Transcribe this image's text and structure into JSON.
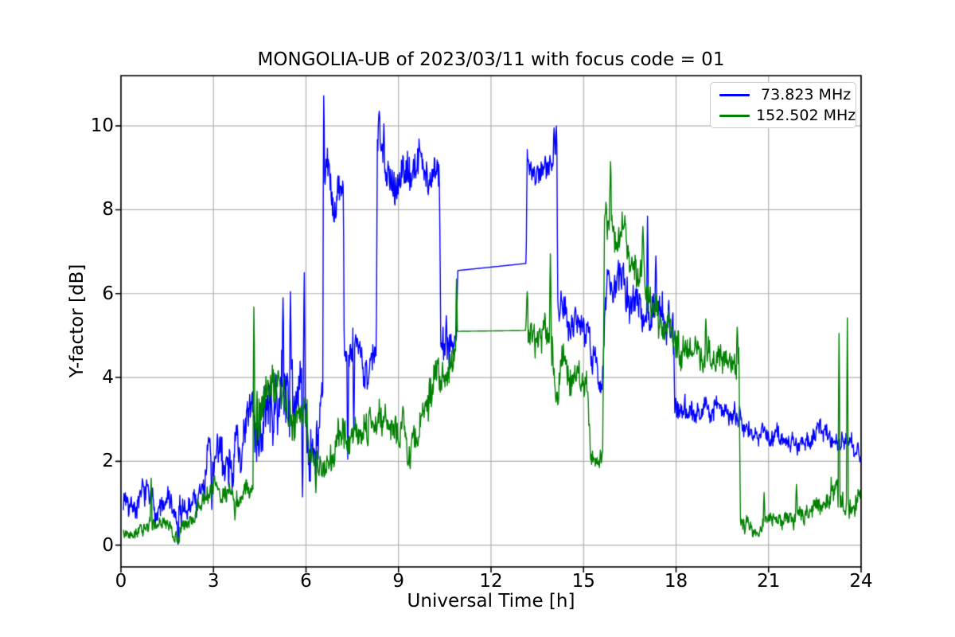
{
  "chart_data": {
    "type": "line",
    "title": "MONGOLIA-UB of 2023/03/11 with focus code = 01",
    "xlabel": "Universal Time [h]",
    "ylabel": "Y-factor [dB]",
    "xlim": [
      0,
      24
    ],
    "ylim": [
      -0.52,
      11.2
    ],
    "x_ticks": [
      0,
      3,
      6,
      9,
      12,
      15,
      18,
      21,
      24
    ],
    "y_ticks": [
      0,
      2,
      4,
      6,
      8,
      10
    ],
    "grid": true,
    "grid_color": "#b0b0b0",
    "axis_color": "#000000",
    "background": "#ffffff",
    "legend_position": "upper right",
    "keyframe_fields": [
      "time_h",
      "mean_dB",
      "noise_halfwidth_dB"
    ],
    "spike_fields": [
      "time_h",
      "peak_dB"
    ],
    "series": [
      {
        "name": "73.823 MHz",
        "color": "#0000ff",
        "linewidth": 1.4,
        "seed": 7,
        "keyframes": [
          [
            0.08,
            1.15,
            0.35
          ],
          [
            0.9,
            1.05,
            0.38
          ],
          [
            1.3,
            0.85,
            0.4
          ],
          [
            1.55,
            1.0,
            0.4
          ],
          [
            1.78,
            0.5,
            0.45
          ],
          [
            1.95,
            0.6,
            0.45
          ],
          [
            2.2,
            1.0,
            0.4
          ],
          [
            2.6,
            1.15,
            0.45
          ],
          [
            2.85,
            2.1,
            0.9
          ],
          [
            3.15,
            1.9,
            0.7
          ],
          [
            3.55,
            2.3,
            0.85
          ],
          [
            4.0,
            2.25,
            0.75
          ],
          [
            4.45,
            3.2,
            1.0
          ],
          [
            4.8,
            3.0,
            0.9
          ],
          [
            5.3,
            3.6,
            1.1
          ],
          [
            5.8,
            3.8,
            1.2
          ],
          [
            6.1,
            2.7,
            1.0
          ],
          [
            6.45,
            3.1,
            0.9
          ],
          [
            6.555,
            3.4,
            0.8
          ],
          [
            6.585,
            8.6,
            0.7
          ],
          [
            6.75,
            8.5,
            0.75
          ],
          [
            6.95,
            7.8,
            0.6
          ],
          [
            7.1,
            8.4,
            0.55
          ],
          [
            7.21,
            8.45,
            0.5
          ],
          [
            7.24,
            4.5,
            0.55
          ],
          [
            7.8,
            4.45,
            0.55
          ],
          [
            8.28,
            4.35,
            0.5
          ],
          [
            8.315,
            9.3,
            0.7
          ],
          [
            8.6,
            9.2,
            0.6
          ],
          [
            9.0,
            8.85,
            0.65
          ],
          [
            9.5,
            9.1,
            0.6
          ],
          [
            9.9,
            9.0,
            0.6
          ],
          [
            10.33,
            8.9,
            0.55
          ],
          [
            10.37,
            5.0,
            0.6
          ],
          [
            10.6,
            5.0,
            0.7
          ],
          [
            10.88,
            5.3,
            0.6
          ],
          [
            10.92,
            6.55,
            0
          ],
          [
            13.14,
            6.72,
            0
          ],
          [
            13.17,
            9.15,
            0.4
          ],
          [
            13.5,
            9.0,
            0.42
          ],
          [
            13.9,
            9.3,
            0.4
          ],
          [
            14.13,
            9.55,
            0.35
          ],
          [
            14.17,
            5.9,
            0.4
          ],
          [
            14.5,
            5.5,
            0.5
          ],
          [
            15.0,
            5.3,
            0.5
          ],
          [
            15.25,
            4.4,
            0.55
          ],
          [
            15.5,
            3.9,
            0.5
          ],
          [
            15.63,
            4.3,
            0.5
          ],
          [
            15.7,
            6.35,
            0.6
          ],
          [
            15.9,
            6.25,
            0.55
          ],
          [
            16.3,
            6.0,
            0.55
          ],
          [
            17.0,
            5.7,
            0.55
          ],
          [
            17.5,
            5.7,
            0.6
          ],
          [
            17.9,
            5.4,
            0.55
          ],
          [
            17.97,
            3.35,
            0.4
          ],
          [
            18.6,
            3.3,
            0.4
          ],
          [
            19.3,
            3.35,
            0.35
          ],
          [
            20.08,
            3.05,
            0.35
          ],
          [
            20.14,
            2.6,
            0.3
          ],
          [
            21.0,
            2.6,
            0.28
          ],
          [
            22.0,
            2.5,
            0.28
          ],
          [
            22.8,
            2.7,
            0.26
          ],
          [
            23.4,
            2.6,
            0.3
          ],
          [
            23.75,
            2.3,
            0.3
          ],
          [
            24.0,
            2.15,
            0.3
          ]
        ],
        "spikes": [
          [
            1.85,
            0.02
          ],
          [
            2.95,
            0.85
          ],
          [
            5.25,
            5.9
          ],
          [
            5.5,
            6.05
          ],
          [
            5.88,
            1.15
          ],
          [
            5.95,
            6.5
          ],
          [
            6.57,
            10.72
          ],
          [
            7.35,
            2.05
          ],
          [
            7.55,
            2.7
          ],
          [
            8.38,
            10.35
          ],
          [
            8.52,
            10.05
          ],
          [
            14.05,
            9.95
          ],
          [
            14.12,
            10.0
          ],
          [
            17.07,
            7.85
          ],
          [
            17.35,
            6.9
          ]
        ]
      },
      {
        "name": "152.502 MHz",
        "color": "#008000",
        "linewidth": 1.4,
        "seed": 13,
        "keyframes": [
          [
            0.08,
            0.38,
            0.16
          ],
          [
            0.9,
            0.42,
            0.2
          ],
          [
            1.5,
            0.42,
            0.18
          ],
          [
            1.82,
            0.2,
            0.16
          ],
          [
            2.05,
            0.4,
            0.2
          ],
          [
            2.5,
            0.85,
            0.25
          ],
          [
            3.0,
            1.35,
            0.3
          ],
          [
            3.4,
            1.3,
            0.3
          ],
          [
            3.75,
            1.05,
            0.3
          ],
          [
            4.1,
            1.2,
            0.3
          ],
          [
            4.29,
            1.35,
            0.3
          ],
          [
            4.33,
            3.5,
            0.8
          ],
          [
            4.7,
            3.4,
            0.7
          ],
          [
            5.1,
            3.3,
            0.7
          ],
          [
            5.6,
            3.1,
            0.65
          ],
          [
            6.02,
            2.9,
            0.6
          ],
          [
            6.1,
            1.85,
            0.45
          ],
          [
            6.5,
            1.8,
            0.4
          ],
          [
            7.0,
            2.3,
            0.5
          ],
          [
            7.5,
            2.9,
            0.5
          ],
          [
            8.2,
            3.0,
            0.5
          ],
          [
            8.8,
            3.1,
            0.45
          ],
          [
            9.22,
            2.75,
            0.5
          ],
          [
            9.38,
            2.4,
            0.45
          ],
          [
            9.8,
            3.1,
            0.5
          ],
          [
            10.3,
            4.0,
            0.5
          ],
          [
            10.7,
            4.3,
            0.45
          ],
          [
            10.87,
            4.6,
            0.4
          ],
          [
            10.9,
            5.1,
            0
          ],
          [
            13.12,
            5.12,
            0
          ],
          [
            13.16,
            5.15,
            0.55
          ],
          [
            13.5,
            4.6,
            0.5
          ],
          [
            13.9,
            4.8,
            0.7
          ],
          [
            14.1,
            4.2,
            0.6
          ],
          [
            14.6,
            3.9,
            0.55
          ],
          [
            15.1,
            3.45,
            0.5
          ],
          [
            15.24,
            2.0,
            0.35
          ],
          [
            15.45,
            1.85,
            0.3
          ],
          [
            15.62,
            2.1,
            0.35
          ],
          [
            15.68,
            7.9,
            0.7
          ],
          [
            15.9,
            8.2,
            0.6
          ],
          [
            16.05,
            7.5,
            0.6
          ],
          [
            16.5,
            6.9,
            0.55
          ],
          [
            17.0,
            6.3,
            0.55
          ],
          [
            17.5,
            5.5,
            0.5
          ],
          [
            18.0,
            4.8,
            0.45
          ],
          [
            18.7,
            4.55,
            0.45
          ],
          [
            19.5,
            4.5,
            0.4
          ],
          [
            20.04,
            4.4,
            0.4
          ],
          [
            20.09,
            0.45,
            0.22
          ],
          [
            20.9,
            0.5,
            0.22
          ],
          [
            21.8,
            0.65,
            0.25
          ],
          [
            22.5,
            0.8,
            0.28
          ],
          [
            23.0,
            1.05,
            0.4
          ],
          [
            23.3,
            1.2,
            0.45
          ],
          [
            23.6,
            1.15,
            0.4
          ],
          [
            24.0,
            0.95,
            0.3
          ]
        ],
        "spikes": [
          [
            0.98,
            1.6
          ],
          [
            1.88,
            0.05
          ],
          [
            3.7,
            0.6
          ],
          [
            4.31,
            5.68
          ],
          [
            6.32,
            1.25
          ],
          [
            9.3,
            1.9
          ],
          [
            10.88,
            6.35
          ],
          [
            13.18,
            6.05
          ],
          [
            13.93,
            6.95
          ],
          [
            15.88,
            9.15
          ],
          [
            16.93,
            7.6
          ],
          [
            18.97,
            5.4
          ],
          [
            19.98,
            5.2
          ],
          [
            20.85,
            1.25
          ],
          [
            21.9,
            1.45
          ],
          [
            23.28,
            5.05
          ],
          [
            23.55,
            5.42
          ]
        ]
      }
    ]
  },
  "legend": {
    "items": [
      {
        "label": " 73.823 MHz",
        "color": "#0000ff"
      },
      {
        "label": "152.502 MHz",
        "color": "#008000"
      }
    ]
  }
}
